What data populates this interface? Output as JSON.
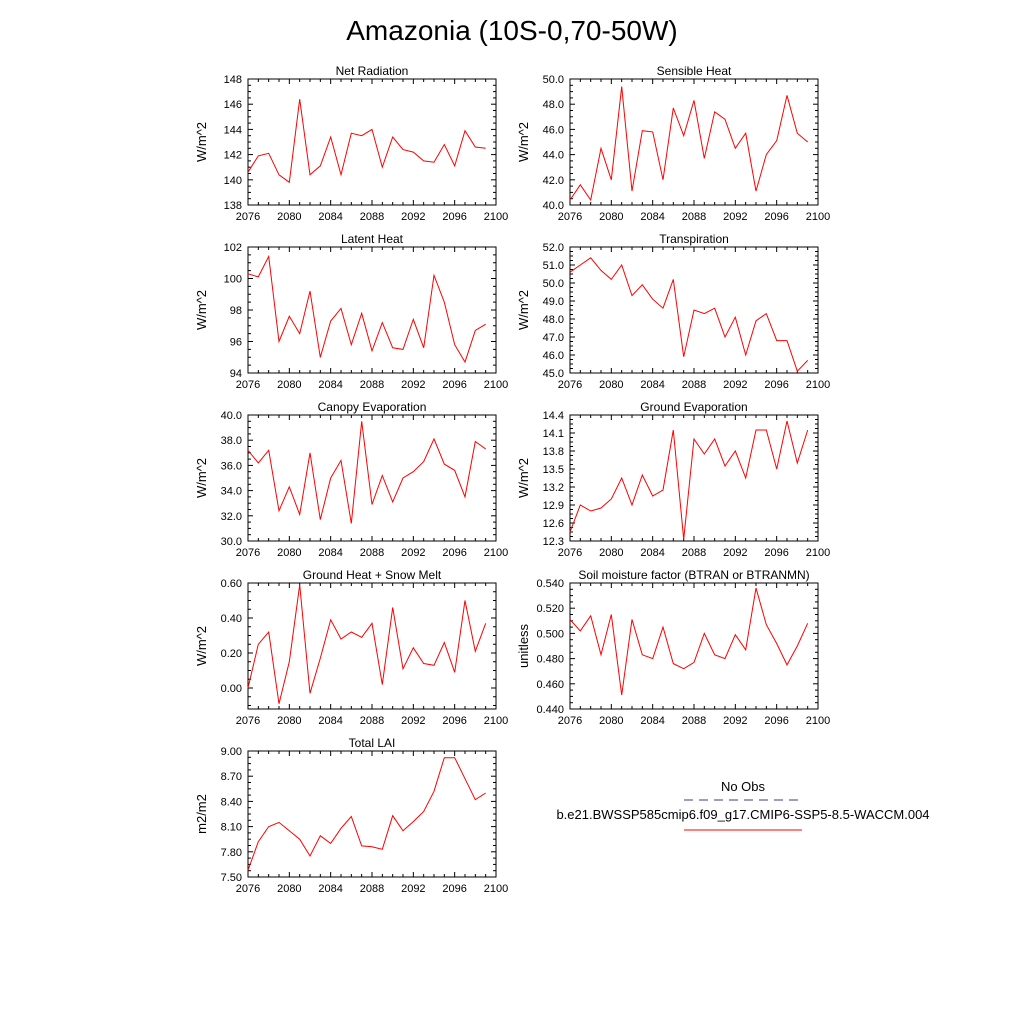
{
  "figure": {
    "title": "Amazonia (10S-0,70-50W)",
    "line_color": "#ff0000",
    "legend": {
      "obs_label": "No Obs",
      "obs_color": "#3a3a9a",
      "model_label": "b.e21.BWSSP585cmip6.f09_g17.CMIP6-SSP5-8.5-WACCM.004",
      "model_color": "#ff0000"
    }
  },
  "chart_data": [
    {
      "type": "line",
      "title": "Net Radiation",
      "ylabel": "W/m^2",
      "xlim": [
        2076,
        2100
      ],
      "ylim": [
        138,
        148
      ],
      "xticks": [
        2076,
        2080,
        2084,
        2088,
        2092,
        2096,
        2100
      ],
      "xticklabels": [
        "2076",
        "2080",
        "2084",
        "2088",
        "2092",
        "2096",
        "2100"
      ],
      "yticks": [
        138,
        140,
        142,
        144,
        146,
        148
      ],
      "yticklabels": [
        "138",
        "140",
        "142",
        "144",
        "146",
        "148"
      ],
      "x": [
        2076,
        2077,
        2078,
        2079,
        2080,
        2081,
        2082,
        2083,
        2084,
        2085,
        2086,
        2087,
        2088,
        2089,
        2090,
        2091,
        2092,
        2093,
        2094,
        2095,
        2096,
        2097,
        2098,
        2099
      ],
      "series": [
        {
          "values": [
            140.6,
            141.9,
            142.1,
            140.4,
            139.8,
            146.4,
            140.4,
            141.1,
            143.4,
            140.4,
            143.7,
            143.5,
            144.0,
            141.0,
            143.4,
            142.4,
            142.2,
            141.5,
            141.4,
            142.8,
            141.1,
            143.9,
            142.6,
            142.5
          ]
        }
      ]
    },
    {
      "type": "line",
      "title": "Sensible Heat",
      "ylabel": "W/m^2",
      "xlim": [
        2076,
        2100
      ],
      "ylim": [
        40,
        50
      ],
      "xticks": [
        2076,
        2080,
        2084,
        2088,
        2092,
        2096,
        2100
      ],
      "xticklabels": [
        "2076",
        "2080",
        "2084",
        "2088",
        "2092",
        "2096",
        "2100"
      ],
      "yticks": [
        40,
        42,
        44,
        46,
        48,
        50
      ],
      "yticklabels": [
        "40.0",
        "42.0",
        "44.0",
        "46.0",
        "48.0",
        "50.0"
      ],
      "x": [
        2076,
        2077,
        2078,
        2079,
        2080,
        2081,
        2082,
        2083,
        2084,
        2085,
        2086,
        2087,
        2088,
        2089,
        2090,
        2091,
        2092,
        2093,
        2094,
        2095,
        2096,
        2097,
        2098,
        2099
      ],
      "series": [
        {
          "values": [
            40.4,
            41.6,
            40.4,
            44.5,
            42.0,
            49.4,
            41.1,
            45.9,
            45.8,
            42.0,
            47.7,
            45.5,
            48.3,
            43.7,
            47.4,
            46.8,
            44.5,
            45.7,
            41.1,
            44.0,
            45.1,
            48.7,
            45.7,
            45.0
          ]
        }
      ]
    },
    {
      "type": "line",
      "title": "Latent Heat",
      "ylabel": "W/m^2",
      "xlim": [
        2076,
        2100
      ],
      "ylim": [
        94,
        102
      ],
      "xticks": [
        2076,
        2080,
        2084,
        2088,
        2092,
        2096,
        2100
      ],
      "xticklabels": [
        "2076",
        "2080",
        "2084",
        "2088",
        "2092",
        "2096",
        "2100"
      ],
      "yticks": [
        94,
        96,
        98,
        100,
        102
      ],
      "yticklabels": [
        "94",
        "96",
        "98",
        "100",
        "102"
      ],
      "x": [
        2076,
        2077,
        2078,
        2079,
        2080,
        2081,
        2082,
        2083,
        2084,
        2085,
        2086,
        2087,
        2088,
        2089,
        2090,
        2091,
        2092,
        2093,
        2094,
        2095,
        2096,
        2097,
        2098,
        2099
      ],
      "series": [
        {
          "values": [
            100.3,
            100.1,
            101.4,
            96.0,
            97.6,
            96.5,
            99.2,
            95.0,
            97.3,
            98.1,
            95.8,
            97.8,
            95.4,
            97.2,
            95.6,
            95.5,
            97.4,
            95.6,
            100.2,
            98.5,
            95.8,
            94.7,
            96.7,
            97.1
          ]
        }
      ]
    },
    {
      "type": "line",
      "title": "Transpiration",
      "ylabel": "W/m^2",
      "xlim": [
        2076,
        2100
      ],
      "ylim": [
        45,
        52
      ],
      "xticks": [
        2076,
        2080,
        2084,
        2088,
        2092,
        2096,
        2100
      ],
      "xticklabels": [
        "2076",
        "2080",
        "2084",
        "2088",
        "2092",
        "2096",
        "2100"
      ],
      "yticks": [
        45,
        46,
        47,
        48,
        49,
        50,
        51,
        52
      ],
      "yticklabels": [
        "45.0",
        "46.0",
        "47.0",
        "48.0",
        "49.0",
        "50.0",
        "51.0",
        "52.0"
      ],
      "x": [
        2076,
        2077,
        2078,
        2079,
        2080,
        2081,
        2082,
        2083,
        2084,
        2085,
        2086,
        2087,
        2088,
        2089,
        2090,
        2091,
        2092,
        2093,
        2094,
        2095,
        2096,
        2097,
        2098,
        2099
      ],
      "series": [
        {
          "values": [
            50.6,
            51.0,
            51.4,
            50.7,
            50.2,
            51.0,
            49.3,
            49.9,
            49.1,
            48.6,
            50.2,
            45.9,
            48.5,
            48.3,
            48.6,
            47.0,
            48.1,
            46.0,
            47.9,
            48.3,
            46.8,
            46.8,
            45.1,
            45.7
          ]
        }
      ]
    },
    {
      "type": "line",
      "title": "Canopy Evaporation",
      "ylabel": "W/m^2",
      "xlim": [
        2076,
        2100
      ],
      "ylim": [
        30,
        40
      ],
      "xticks": [
        2076,
        2080,
        2084,
        2088,
        2092,
        2096,
        2100
      ],
      "xticklabels": [
        "2076",
        "2080",
        "2084",
        "2088",
        "2092",
        "2096",
        "2100"
      ],
      "yticks": [
        30,
        32,
        34,
        36,
        38,
        40
      ],
      "yticklabels": [
        "30.0",
        "32.0",
        "34.0",
        "36.0",
        "38.0",
        "40.0"
      ],
      "x": [
        2076,
        2077,
        2078,
        2079,
        2080,
        2081,
        2082,
        2083,
        2084,
        2085,
        2086,
        2087,
        2088,
        2089,
        2090,
        2091,
        2092,
        2093,
        2094,
        2095,
        2096,
        2097,
        2098,
        2099
      ],
      "series": [
        {
          "values": [
            37.2,
            36.2,
            37.2,
            32.4,
            34.3,
            32.1,
            37.0,
            31.7,
            35.0,
            36.4,
            31.4,
            39.5,
            32.9,
            35.2,
            33.1,
            35.0,
            35.5,
            36.3,
            38.1,
            36.1,
            35.6,
            33.5,
            37.9,
            37.3
          ]
        }
      ]
    },
    {
      "type": "line",
      "title": "Ground Evaporation",
      "ylabel": "W/m^2",
      "xlim": [
        2076,
        2100
      ],
      "ylim": [
        12.3,
        14.4
      ],
      "xticks": [
        2076,
        2080,
        2084,
        2088,
        2092,
        2096,
        2100
      ],
      "xticklabels": [
        "2076",
        "2080",
        "2084",
        "2088",
        "2092",
        "2096",
        "2100"
      ],
      "yticks": [
        12.3,
        12.6,
        12.9,
        13.2,
        13.5,
        13.8,
        14.1,
        14.4
      ],
      "yticklabels": [
        "12.3",
        "12.6",
        "12.9",
        "13.2",
        "13.5",
        "13.8",
        "14.1",
        "14.4"
      ],
      "x": [
        2076,
        2077,
        2078,
        2079,
        2080,
        2081,
        2082,
        2083,
        2084,
        2085,
        2086,
        2087,
        2088,
        2089,
        2090,
        2091,
        2092,
        2093,
        2094,
        2095,
        2096,
        2097,
        2098,
        2099
      ],
      "series": [
        {
          "values": [
            12.45,
            12.9,
            12.8,
            12.85,
            13.0,
            13.35,
            12.9,
            13.4,
            13.05,
            13.15,
            14.15,
            12.33,
            14.0,
            13.75,
            14.0,
            13.55,
            13.8,
            13.35,
            14.15,
            14.15,
            13.5,
            14.3,
            13.6,
            14.15
          ]
        }
      ]
    },
    {
      "type": "line",
      "title": "Ground Heat + Snow Melt",
      "ylabel": "W/m^2",
      "xlim": [
        2076,
        2100
      ],
      "ylim": [
        -0.12,
        0.6
      ],
      "xticks": [
        2076,
        2080,
        2084,
        2088,
        2092,
        2096,
        2100
      ],
      "xticklabels": [
        "2076",
        "2080",
        "2084",
        "2088",
        "2092",
        "2096",
        "2100"
      ],
      "yticks": [
        0.0,
        0.2,
        0.4,
        0.6
      ],
      "yticklabels": [
        "0.00",
        "0.20",
        "0.40",
        "0.60"
      ],
      "x": [
        2076,
        2077,
        2078,
        2079,
        2080,
        2081,
        2082,
        2083,
        2084,
        2085,
        2086,
        2087,
        2088,
        2089,
        2090,
        2091,
        2092,
        2093,
        2094,
        2095,
        2096,
        2097,
        2098,
        2099
      ],
      "series": [
        {
          "values": [
            0.0,
            0.25,
            0.32,
            -0.09,
            0.15,
            0.59,
            -0.03,
            0.17,
            0.39,
            0.28,
            0.32,
            0.29,
            0.37,
            0.02,
            0.46,
            0.11,
            0.23,
            0.14,
            0.13,
            0.26,
            0.09,
            0.5,
            0.21,
            0.37
          ]
        }
      ]
    },
    {
      "type": "line",
      "title": "Soil moisture factor (BTRAN or BTRANMN)",
      "ylabel": "unitless",
      "xlim": [
        2076,
        2100
      ],
      "ylim": [
        0.44,
        0.54
      ],
      "xticks": [
        2076,
        2080,
        2084,
        2088,
        2092,
        2096,
        2100
      ],
      "xticklabels": [
        "2076",
        "2080",
        "2084",
        "2088",
        "2092",
        "2096",
        "2100"
      ],
      "yticks": [
        0.44,
        0.46,
        0.48,
        0.5,
        0.52,
        0.54
      ],
      "yticklabels": [
        "0.440",
        "0.460",
        "0.480",
        "0.500",
        "0.520",
        "0.540"
      ],
      "x": [
        2076,
        2077,
        2078,
        2079,
        2080,
        2081,
        2082,
        2083,
        2084,
        2085,
        2086,
        2087,
        2088,
        2089,
        2090,
        2091,
        2092,
        2093,
        2094,
        2095,
        2096,
        2097,
        2098,
        2099
      ],
      "series": [
        {
          "values": [
            0.511,
            0.502,
            0.514,
            0.483,
            0.515,
            0.451,
            0.511,
            0.483,
            0.48,
            0.505,
            0.476,
            0.472,
            0.477,
            0.5,
            0.483,
            0.48,
            0.499,
            0.487,
            0.536,
            0.507,
            0.492,
            0.475,
            0.49,
            0.508
          ]
        }
      ]
    },
    {
      "type": "line",
      "title": "Total LAI",
      "ylabel": "m2/m2",
      "xlim": [
        2076,
        2100
      ],
      "ylim": [
        7.5,
        9.0
      ],
      "xticks": [
        2076,
        2080,
        2084,
        2088,
        2092,
        2096,
        2100
      ],
      "xticklabels": [
        "2076",
        "2080",
        "2084",
        "2088",
        "2092",
        "2096",
        "2100"
      ],
      "yticks": [
        7.5,
        7.8,
        8.1,
        8.4,
        8.7,
        9.0
      ],
      "yticklabels": [
        "7.50",
        "7.80",
        "8.10",
        "8.40",
        "8.70",
        "9.00"
      ],
      "x": [
        2076,
        2077,
        2078,
        2079,
        2080,
        2081,
        2082,
        2083,
        2084,
        2085,
        2086,
        2087,
        2088,
        2089,
        2090,
        2091,
        2092,
        2093,
        2094,
        2095,
        2096,
        2097,
        2098,
        2099
      ],
      "series": [
        {
          "values": [
            7.58,
            7.92,
            8.1,
            8.15,
            8.05,
            7.95,
            7.75,
            7.99,
            7.9,
            8.08,
            8.22,
            7.87,
            7.86,
            7.83,
            8.23,
            8.05,
            8.16,
            8.28,
            8.52,
            8.92,
            8.92,
            8.67,
            8.42,
            8.5
          ]
        }
      ]
    }
  ]
}
